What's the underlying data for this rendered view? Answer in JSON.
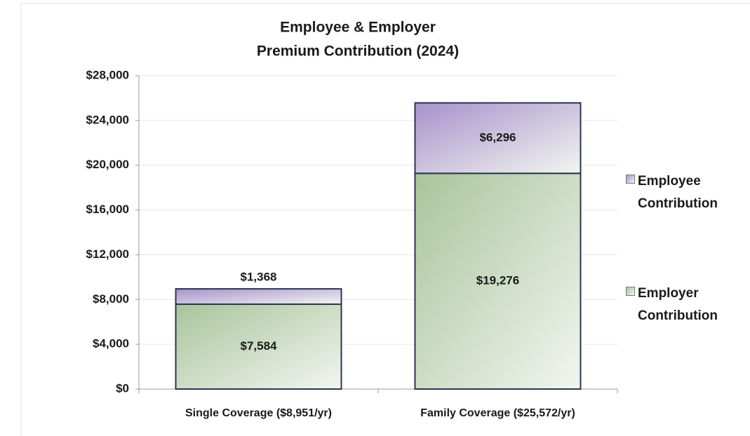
{
  "chart_data": {
    "type": "stacked_bar",
    "title": [
      "Employee & Employer",
      "Premium Contribution (2024)"
    ],
    "categories": [
      "Single Coverage ($8,951/yr)",
      "Family Coverage ($25,572/yr)"
    ],
    "series": [
      {
        "name": "Employer Contribution",
        "color": "#a9c59b",
        "values": [
          7584,
          19276
        ],
        "value_labels": [
          "$7,584",
          "$19,276"
        ]
      },
      {
        "name": "Employee Contribution",
        "color": "#a892cc",
        "values": [
          1368,
          6296
        ],
        "value_labels": [
          "$1,368",
          "$6,296"
        ]
      }
    ],
    "ylim": [
      0,
      28000
    ],
    "yticks": [
      {
        "value": 0,
        "label": "$0"
      },
      {
        "value": 4000,
        "label": "$4,000"
      },
      {
        "value": 8000,
        "label": "$8,000"
      },
      {
        "value": 12000,
        "label": "$12,000"
      },
      {
        "value": 16000,
        "label": "$16,000"
      },
      {
        "value": 20000,
        "label": "$20,000"
      },
      {
        "value": 24000,
        "label": "$24,000"
      },
      {
        "value": 28000,
        "label": "$28,000"
      }
    ],
    "grid": true
  }
}
